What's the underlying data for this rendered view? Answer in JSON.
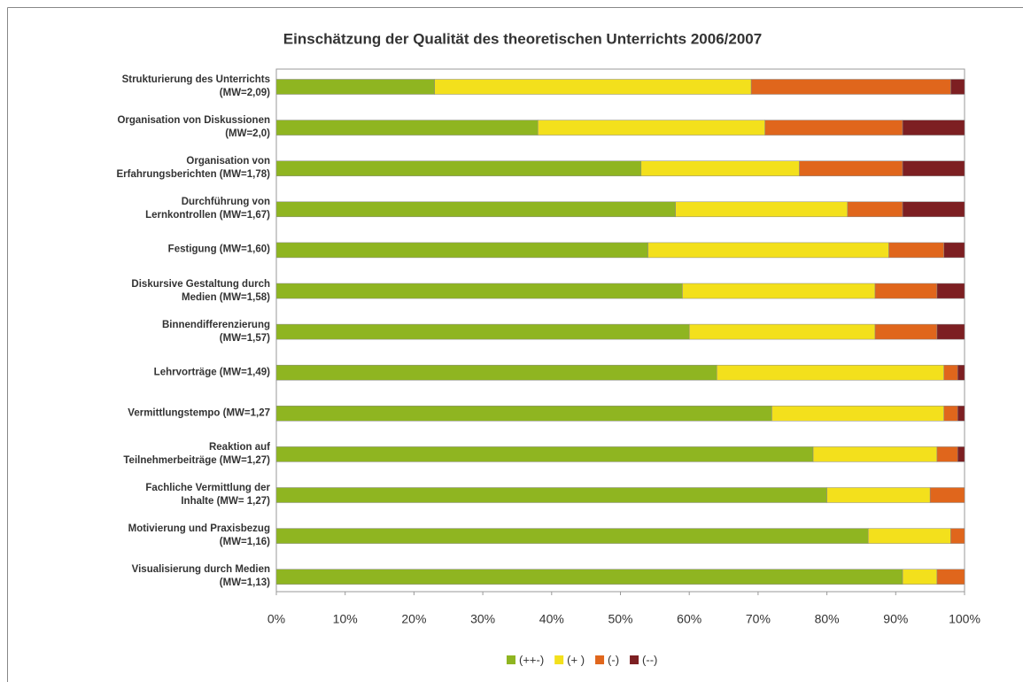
{
  "chart_data": {
    "type": "stacked_barh",
    "title": "Einschätzung der Qualität des theoretischen Unterrichts 2006/2007",
    "categories": [
      "Strukturierung des Unterrichts\n(MW=2,09)",
      "Organisation von Diskussionen\n(MW=2,0)",
      "Organisation von\nErfahrungsberichten (MW=1,78)",
      "Durchführung von\nLernkontrollen (MW=1,67)",
      "Festigung (MW=1,60)",
      "Diskursive Gestaltung durch\nMedien (MW=1,58)",
      "Binnendifferenzierung\n(MW=1,57)",
      "Lehrvorträge (MW=1,49)",
      "Vermittlungstempo (MW=1,27",
      "Reaktion auf\nTeilnehmerbeiträge (MW=1,27)",
      "Fachliche Vermittlung der\nInhalte (MW= 1,27)",
      "Motivierung und Praxisbezug\n(MW=1,16)",
      "Visualisierung durch Medien\n(MW=1,13)"
    ],
    "series": [
      {
        "name": "(++-)",
        "color": "#8fb521",
        "values": [
          23,
          38,
          53,
          58,
          54,
          59,
          60,
          64,
          72,
          78,
          80,
          86,
          91
        ]
      },
      {
        "name": "(+ )",
        "color": "#f3e01c",
        "values": [
          46,
          33,
          23,
          25,
          35,
          28,
          27,
          33,
          25,
          18,
          15,
          12,
          5
        ]
      },
      {
        "name": "(-)",
        "color": "#e0661c",
        "values": [
          29,
          20,
          15,
          8,
          8,
          9,
          9,
          2,
          2,
          3,
          5,
          2,
          4
        ]
      },
      {
        "name": "(--)",
        "color": "#7d1f22",
        "values": [
          2,
          9,
          9,
          9,
          3,
          4,
          4,
          1,
          1,
          1,
          0,
          0,
          0
        ]
      }
    ],
    "xlim": [
      0,
      100
    ],
    "xticks": [
      {
        "value": 0,
        "label": "0%"
      },
      {
        "value": 10,
        "label": "10%"
      },
      {
        "value": 20,
        "label": "20%"
      },
      {
        "value": 30,
        "label": "30%"
      },
      {
        "value": 40,
        "label": "40%"
      },
      {
        "value": 50,
        "label": "50%"
      },
      {
        "value": 60,
        "label": "60%"
      },
      {
        "value": 70,
        "label": "70%"
      },
      {
        "value": 80,
        "label": "80%"
      },
      {
        "value": 90,
        "label": "90%"
      },
      {
        "value": 100,
        "label": "100%"
      }
    ],
    "legend": "bottom"
  }
}
